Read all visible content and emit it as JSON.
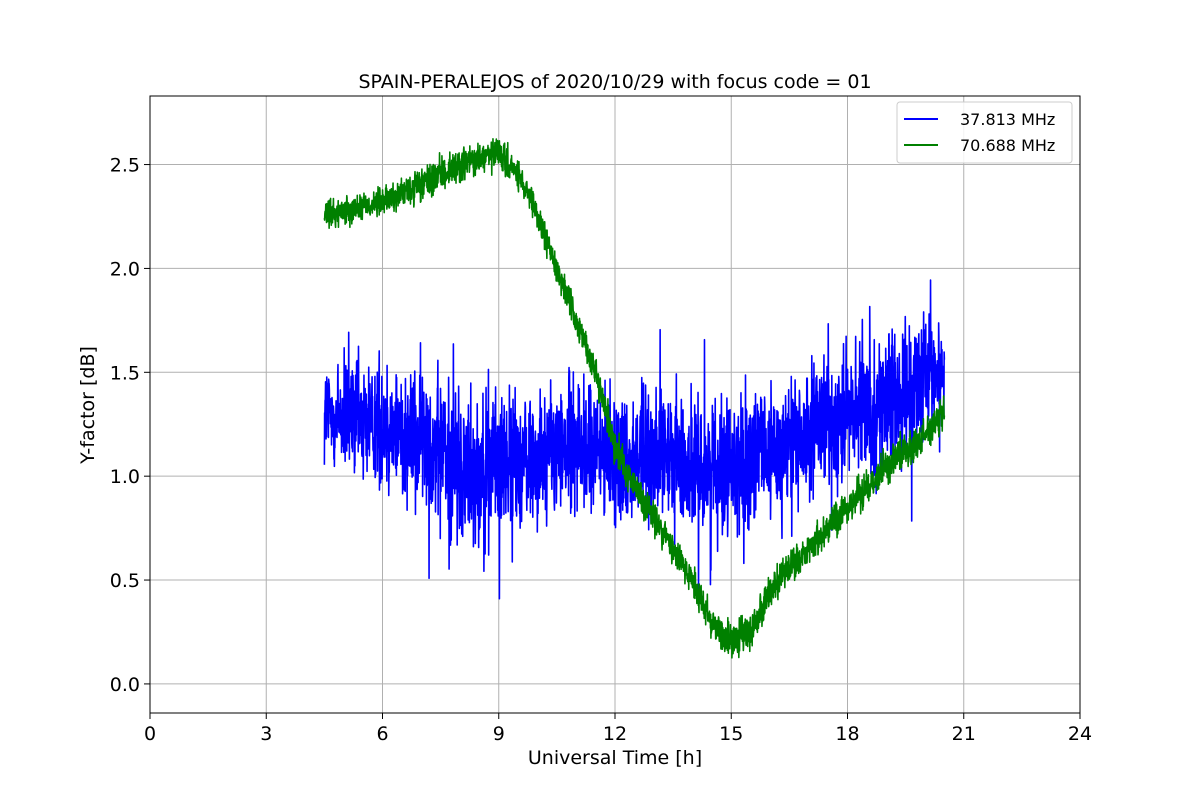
{
  "chart_data": {
    "type": "line",
    "title": "SPAIN-PERALEJOS of 2020/10/29 with focus code = 01",
    "xlabel": "Universal Time [h]",
    "ylabel": "Y-factor [dB]",
    "xlim": [
      0,
      24
    ],
    "ylim": [
      -0.14,
      2.83
    ],
    "xticks": [
      0,
      3,
      6,
      9,
      12,
      15,
      18,
      21,
      24
    ],
    "yticks": [
      0.0,
      0.5,
      1.0,
      1.5,
      2.0,
      2.5
    ],
    "xtick_labels": [
      "0",
      "3",
      "6",
      "9",
      "12",
      "15",
      "18",
      "21",
      "24"
    ],
    "ytick_labels": [
      "0.0",
      "0.5",
      "1.0",
      "1.5",
      "2.0",
      "2.5"
    ],
    "grid": true,
    "legend_position": "top-right",
    "series": [
      {
        "name": "37.813 MHz",
        "color": "#0000ff",
        "x_range": [
          4.5,
          20.5
        ],
        "trend": {
          "x": [
            4.5,
            6,
            7,
            8,
            9,
            10,
            11,
            12,
            13,
            14,
            15,
            16,
            17,
            18,
            19,
            20,
            20.5
          ],
          "y": [
            1.3,
            1.25,
            1.2,
            1.05,
            1.05,
            1.1,
            1.15,
            1.1,
            1.1,
            1.05,
            1.05,
            1.1,
            1.2,
            1.3,
            1.35,
            1.45,
            1.5
          ]
        },
        "noise_amplitude": [
          0.4,
          0.45,
          0.5,
          0.55,
          0.5,
          0.45,
          0.45,
          0.45,
          0.45,
          0.45,
          0.45,
          0.45,
          0.45,
          0.45,
          0.45,
          0.45,
          0.4
        ]
      },
      {
        "name": "70.688 MHz",
        "color": "#008000",
        "x_range": [
          4.5,
          20.5
        ],
        "trend": {
          "x": [
            4.5,
            5,
            6,
            7,
            8,
            9,
            9.5,
            10,
            10.5,
            11,
            11.5,
            12,
            12.5,
            13,
            13.5,
            14,
            14.5,
            15,
            15.5,
            16,
            17,
            18,
            19,
            20,
            20.5
          ],
          "y": [
            2.25,
            2.28,
            2.32,
            2.4,
            2.5,
            2.55,
            2.45,
            2.25,
            2.0,
            1.75,
            1.5,
            1.15,
            0.95,
            0.8,
            0.65,
            0.5,
            0.3,
            0.2,
            0.25,
            0.45,
            0.65,
            0.85,
            1.05,
            1.2,
            1.3
          ]
        },
        "noise_amplitude": [
          0.1,
          0.1,
          0.1,
          0.12,
          0.12,
          0.12,
          0.1,
          0.1,
          0.1,
          0.1,
          0.1,
          0.12,
          0.12,
          0.12,
          0.12,
          0.12,
          0.14,
          0.14,
          0.14,
          0.12,
          0.12,
          0.12,
          0.12,
          0.12,
          0.12
        ]
      }
    ]
  }
}
